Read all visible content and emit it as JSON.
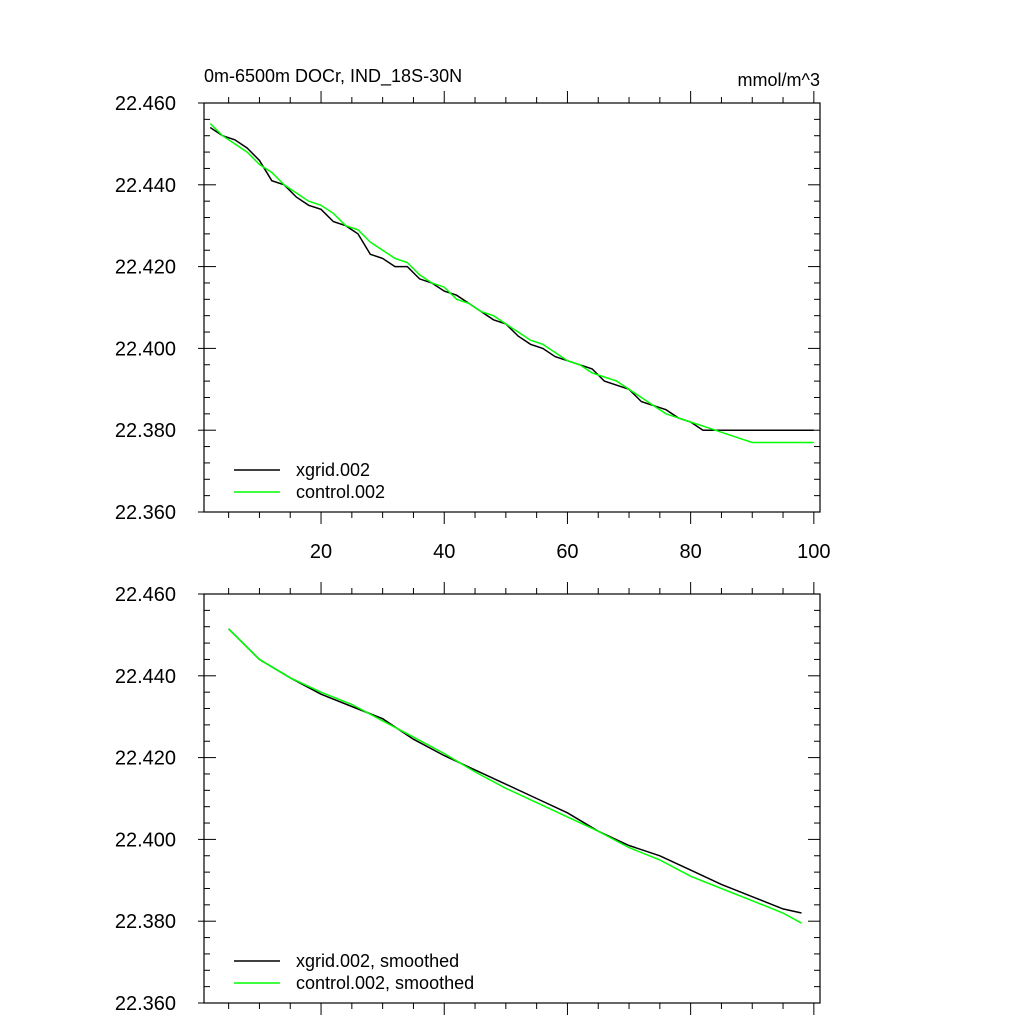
{
  "chart_data": [
    {
      "type": "line",
      "title": "0m-6500m DOCr, IND_18S-30N",
      "units": "mmol/m^3",
      "xlim": [
        1,
        101
      ],
      "ylim": [
        22.36,
        22.46
      ],
      "x_ticks": [
        20,
        40,
        60,
        80,
        100
      ],
      "x_tick_labels": [
        "20",
        "40",
        "60",
        "80",
        "100"
      ],
      "y_ticks": [
        22.36,
        22.38,
        22.4,
        22.42,
        22.44,
        22.46
      ],
      "y_tick_labels": [
        "22.360",
        "22.380",
        "22.400",
        "22.420",
        "22.440",
        "22.460"
      ],
      "legend_position": "bottom-left",
      "series": [
        {
          "name": "xgrid.002",
          "color": "#000000",
          "x": [
            2,
            4,
            6,
            8,
            10,
            12,
            14,
            16,
            18,
            20,
            22,
            24,
            26,
            28,
            30,
            32,
            34,
            36,
            38,
            40,
            42,
            44,
            46,
            48,
            50,
            52,
            54,
            56,
            58,
            60,
            62,
            64,
            66,
            68,
            70,
            72,
            74,
            76,
            78,
            80,
            82,
            84,
            86,
            88,
            90,
            92,
            94,
            96,
            98,
            100
          ],
          "values": [
            22.454,
            22.452,
            22.451,
            22.449,
            22.446,
            22.441,
            22.44,
            22.437,
            22.435,
            22.434,
            22.431,
            22.43,
            22.428,
            22.423,
            22.422,
            22.42,
            22.42,
            22.417,
            22.416,
            22.414,
            22.413,
            22.411,
            22.409,
            22.407,
            22.406,
            22.403,
            22.401,
            22.4,
            22.398,
            22.397,
            22.396,
            22.395,
            22.392,
            22.391,
            22.39,
            22.387,
            22.386,
            22.385,
            22.383,
            22.382,
            22.38,
            22.38,
            22.38,
            22.38,
            22.38,
            22.38,
            22.38,
            22.38,
            22.38,
            22.38
          ]
        },
        {
          "name": "control.002",
          "color": "#00ff00",
          "x": [
            2,
            4,
            6,
            8,
            10,
            12,
            14,
            16,
            18,
            20,
            22,
            24,
            26,
            28,
            30,
            32,
            34,
            36,
            38,
            40,
            42,
            44,
            46,
            48,
            50,
            52,
            54,
            56,
            58,
            60,
            62,
            64,
            66,
            68,
            70,
            72,
            74,
            76,
            78,
            80,
            82,
            84,
            86,
            88,
            90,
            92,
            94,
            96,
            98,
            100
          ],
          "values": [
            22.455,
            22.452,
            22.45,
            22.448,
            22.445,
            22.443,
            22.44,
            22.438,
            22.436,
            22.435,
            22.433,
            22.43,
            22.429,
            22.426,
            22.424,
            22.422,
            22.421,
            22.418,
            22.416,
            22.415,
            22.412,
            22.411,
            22.409,
            22.408,
            22.406,
            22.404,
            22.402,
            22.401,
            22.399,
            22.397,
            22.396,
            22.394,
            22.393,
            22.392,
            22.39,
            22.388,
            22.386,
            22.384,
            22.383,
            22.382,
            22.381,
            22.38,
            22.379,
            22.378,
            22.377,
            22.377,
            22.377,
            22.377,
            22.377,
            22.377
          ]
        }
      ]
    },
    {
      "type": "line",
      "xlim": [
        1,
        101
      ],
      "ylim": [
        22.36,
        22.46
      ],
      "x_ticks": [
        20,
        40,
        60,
        80,
        100
      ],
      "y_ticks": [
        22.36,
        22.38,
        22.4,
        22.42,
        22.44,
        22.46
      ],
      "y_tick_labels": [
        "22.360",
        "22.380",
        "22.400",
        "22.420",
        "22.440",
        "22.460"
      ],
      "legend_position": "bottom-left",
      "series": [
        {
          "name": "xgrid.002, smoothed",
          "color": "#000000",
          "x": [
            5,
            10,
            15,
            20,
            25,
            30,
            35,
            40,
            45,
            50,
            55,
            60,
            65,
            70,
            75,
            80,
            85,
            90,
            95,
            98
          ],
          "values": [
            22.4515,
            22.444,
            22.4395,
            22.4355,
            22.4325,
            22.4295,
            22.4245,
            22.4205,
            22.417,
            22.4135,
            22.41,
            22.4065,
            22.402,
            22.3985,
            22.396,
            22.3925,
            22.389,
            22.386,
            22.383,
            22.382
          ]
        },
        {
          "name": "control.002, smoothed",
          "color": "#00ff00",
          "x": [
            5,
            10,
            15,
            20,
            25,
            30,
            35,
            40,
            45,
            50,
            55,
            60,
            65,
            70,
            75,
            80,
            85,
            90,
            95,
            98
          ],
          "values": [
            22.4515,
            22.444,
            22.4395,
            22.436,
            22.433,
            22.429,
            22.425,
            22.421,
            22.4165,
            22.4125,
            22.409,
            22.4055,
            22.402,
            22.398,
            22.395,
            22.391,
            22.388,
            22.385,
            22.382,
            22.3795
          ]
        }
      ]
    }
  ]
}
